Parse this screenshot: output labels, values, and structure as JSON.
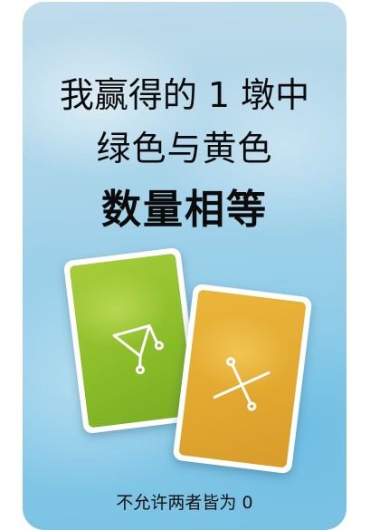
{
  "card": {
    "title_line1": "我赢得的 1 墩中",
    "title_line2": "绿色与黄色",
    "title_line3": "数量相等",
    "footer": "不允许两者皆为 0",
    "background_color": "#8ccbe8"
  },
  "suit_cards": [
    {
      "color": "green",
      "hex": "#8cbd2a",
      "symbol": "triangle-glyph"
    },
    {
      "color": "yellow",
      "hex": "#e2a930",
      "symbol": "cross-glyph"
    }
  ]
}
